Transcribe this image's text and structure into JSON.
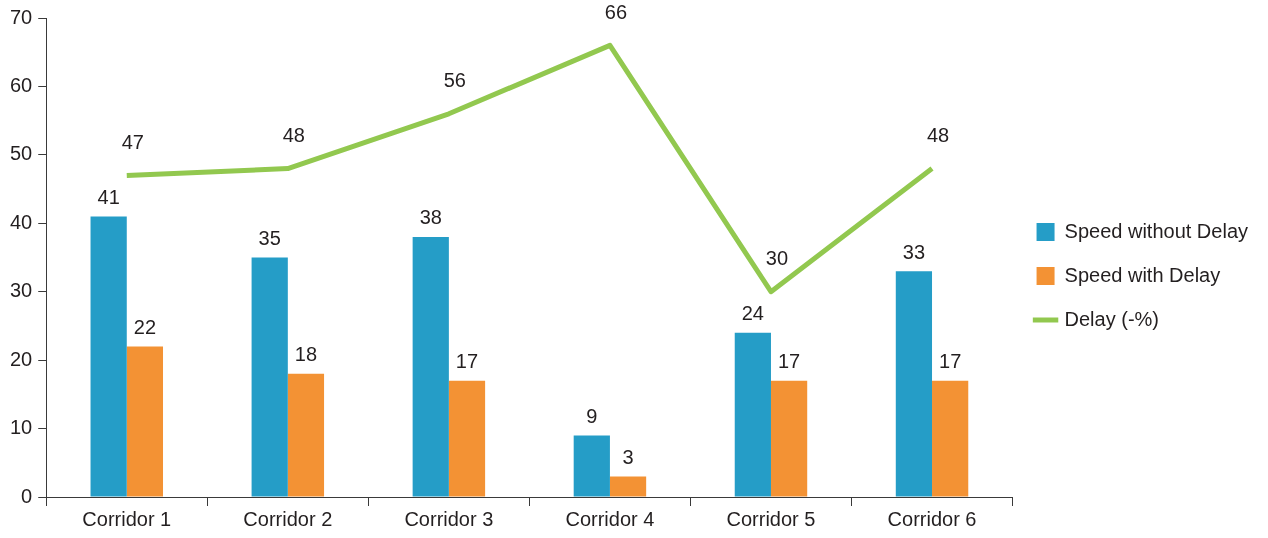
{
  "chart_data": {
    "type": "bar",
    "categories": [
      "Corridor 1",
      "Corridor 2",
      "Corridor 3",
      "Corridor 4",
      "Corridor 5",
      "Corridor 6"
    ],
    "series": [
      {
        "name": "Speed without Delay",
        "color": "#259dc7",
        "values": [
          41,
          35,
          38,
          9,
          24,
          33
        ]
      },
      {
        "name": "Speed with Delay",
        "color": "#f39234",
        "values": [
          22,
          18,
          17,
          3,
          17,
          17
        ]
      },
      {
        "name": "Delay (-%)",
        "type": "line",
        "color": "#92c84f",
        "values": [
          47,
          48,
          56,
          66,
          30,
          48
        ]
      }
    ],
    "ylim": [
      0,
      70
    ],
    "yticks": [
      0,
      10,
      20,
      30,
      40,
      50,
      60,
      70
    ],
    "legend": "right",
    "data_labels": true,
    "marker": "none",
    "line_style": "solid"
  }
}
